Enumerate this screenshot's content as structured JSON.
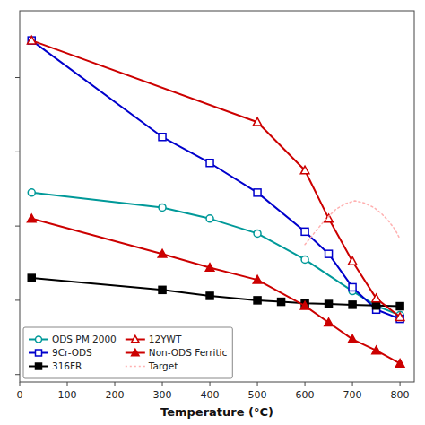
{
  "chart_data": {
    "type": "line",
    "xlabel": "Temperature (°C)",
    "xlim": [
      0,
      830
    ],
    "ylim": [
      -20,
      980
    ],
    "xticks": [
      0,
      100,
      200,
      300,
      400,
      500,
      600,
      700,
      800
    ],
    "yticks": [
      0,
      200,
      400,
      600,
      800
    ],
    "tick_labels": "x",
    "grid": false,
    "legend": "lower left",
    "series": [
      {
        "name": "ODS PM 2000",
        "color": "#009999",
        "marker": "open-circle",
        "line_style": "solid",
        "x": [
          25,
          300,
          400,
          500,
          600,
          700,
          750,
          800
        ],
        "values": [
          490,
          450,
          420,
          380,
          310,
          225,
          185,
          160
        ]
      },
      {
        "name": "9Cr-ODS",
        "color": "#0000CC",
        "marker": "open-square",
        "line_style": "solid",
        "x": [
          25,
          300,
          400,
          500,
          600,
          650,
          700,
          750,
          800
        ],
        "values": [
          900,
          640,
          570,
          490,
          385,
          325,
          235,
          175,
          150
        ]
      },
      {
        "name": "316FR",
        "color": "#000000",
        "marker": "filled-square",
        "line_style": "solid",
        "x": [
          25,
          300,
          400,
          500,
          550,
          600,
          650,
          700,
          750,
          800
        ],
        "values": [
          260,
          228,
          212,
          200,
          196,
          192,
          190,
          188,
          186,
          184
        ]
      },
      {
        "name": "12YWT",
        "color": "#CC0000",
        "marker": "open-triangle",
        "line_style": "solid",
        "x": [
          25,
          500,
          600,
          650,
          700,
          750,
          800
        ],
        "values": [
          900,
          680,
          550,
          420,
          305,
          205,
          155
        ]
      },
      {
        "name": "Non-ODS Ferritic",
        "color": "#CC0000",
        "marker": "filled-triangle",
        "line_style": "solid",
        "x": [
          25,
          300,
          400,
          500,
          600,
          650,
          700,
          750,
          800
        ],
        "values": [
          420,
          325,
          288,
          255,
          185,
          140,
          95,
          65,
          30
        ]
      },
      {
        "name": "Target",
        "color": "#FFB0B0",
        "marker": "none",
        "line_style": "dotted",
        "x": [
          600,
          625,
          645,
          665,
          685,
          705,
          725,
          745,
          760,
          775,
          790,
          800
        ],
        "values": [
          350,
          390,
          420,
          445,
          460,
          468,
          462,
          450,
          435,
          415,
          390,
          365
        ]
      }
    ]
  }
}
